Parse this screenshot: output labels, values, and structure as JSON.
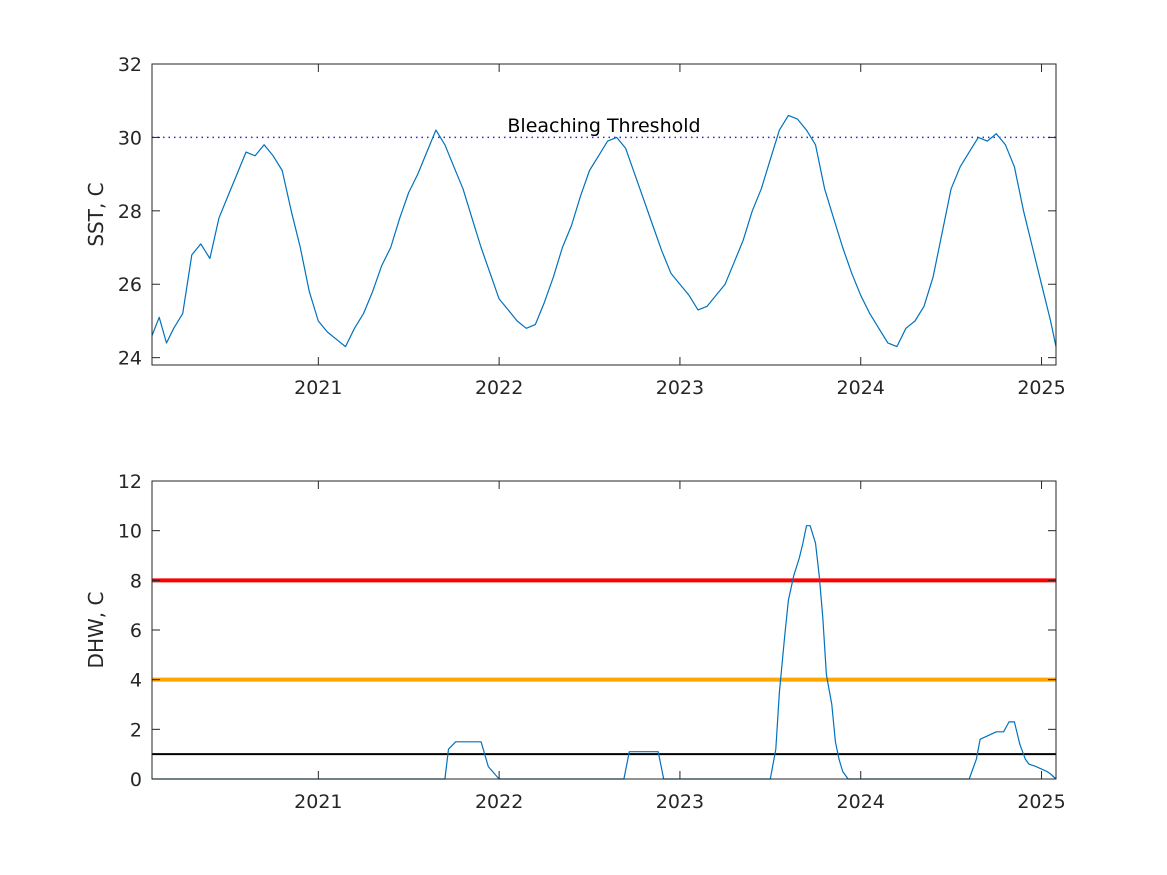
{
  "chart_data": [
    {
      "type": "line",
      "ylabel": "SST, C",
      "xlim": [
        2020.08,
        2025.08
      ],
      "ylim": [
        23.8,
        32
      ],
      "x_ticks": [
        2021,
        2022,
        2023,
        2024,
        2025
      ],
      "y_ticks": [
        24,
        26,
        28,
        30,
        32
      ],
      "annotation": "Bleaching Threshold",
      "threshold": 30,
      "colors": {
        "series": "#0072bd",
        "threshold": "#2b2bd4"
      },
      "series": [
        {
          "x": [
            2020.08,
            2020.12,
            2020.16,
            2020.2,
            2020.25,
            2020.3,
            2020.35,
            2020.4,
            2020.45,
            2020.5,
            2020.55,
            2020.6,
            2020.65,
            2020.7,
            2020.75,
            2020.8,
            2020.85,
            2020.9,
            2020.95,
            2021.0,
            2021.05,
            2021.1,
            2021.15,
            2021.2,
            2021.25,
            2021.3,
            2021.35,
            2021.4,
            2021.45,
            2021.5,
            2021.55,
            2021.6,
            2021.65,
            2021.7,
            2021.75,
            2021.8,
            2021.85,
            2021.9,
            2021.95,
            2022.0,
            2022.05,
            2022.1,
            2022.15,
            2022.2,
            2022.25,
            2022.3,
            2022.35,
            2022.4,
            2022.45,
            2022.5,
            2022.55,
            2022.6,
            2022.65,
            2022.7,
            2022.75,
            2022.8,
            2022.85,
            2022.9,
            2022.95,
            2023.0,
            2023.05,
            2023.1,
            2023.15,
            2023.2,
            2023.25,
            2023.3,
            2023.35,
            2023.4,
            2023.45,
            2023.5,
            2023.55,
            2023.6,
            2023.65,
            2023.7,
            2023.75,
            2023.8,
            2023.85,
            2023.9,
            2023.95,
            2024.0,
            2024.05,
            2024.1,
            2024.15,
            2024.2,
            2024.25,
            2024.3,
            2024.35,
            2024.4,
            2024.45,
            2024.5,
            2024.55,
            2024.6,
            2024.65,
            2024.7,
            2024.75,
            2024.8,
            2024.85,
            2024.9,
            2024.95,
            2025.0,
            2025.05,
            2025.08
          ],
          "y": [
            24.6,
            25.1,
            24.4,
            24.8,
            25.2,
            26.8,
            27.1,
            26.7,
            27.8,
            28.4,
            29.0,
            29.6,
            29.5,
            29.8,
            29.5,
            29.1,
            28.0,
            27.0,
            25.8,
            25.0,
            24.7,
            24.5,
            24.3,
            24.8,
            25.2,
            25.8,
            26.5,
            27.0,
            27.8,
            28.5,
            29.0,
            29.6,
            30.2,
            29.8,
            29.2,
            28.6,
            27.8,
            27.0,
            26.3,
            25.6,
            25.3,
            25.0,
            24.8,
            24.9,
            25.5,
            26.2,
            27.0,
            27.6,
            28.4,
            29.1,
            29.5,
            29.9,
            30.0,
            29.7,
            29.0,
            28.3,
            27.6,
            26.9,
            26.3,
            26.0,
            25.7,
            25.3,
            25.4,
            25.7,
            26.0,
            26.6,
            27.2,
            28.0,
            28.6,
            29.4,
            30.2,
            30.6,
            30.5,
            30.2,
            29.8,
            28.6,
            27.8,
            27.0,
            26.3,
            25.7,
            25.2,
            24.8,
            24.4,
            24.3,
            24.8,
            25.0,
            25.4,
            26.2,
            27.4,
            28.6,
            29.2,
            29.6,
            30.0,
            29.9,
            30.1,
            29.8,
            29.2,
            28.0,
            27.0,
            26.0,
            25.0,
            24.3
          ]
        }
      ]
    },
    {
      "type": "line",
      "ylabel": "DHW, C",
      "xlim": [
        2020.08,
        2025.08
      ],
      "ylim": [
        0,
        12
      ],
      "x_ticks": [
        2021,
        2022,
        2023,
        2024,
        2025
      ],
      "y_ticks": [
        0,
        2,
        4,
        6,
        8,
        10,
        12
      ],
      "reference_lines": [
        {
          "y": 8,
          "color": "#ff0000"
        },
        {
          "y": 4,
          "color": "#ffa500"
        },
        {
          "y": 1,
          "color": "#000000"
        }
      ],
      "colors": {
        "series": "#0072bd"
      },
      "series": [
        {
          "x": [
            2020.08,
            2021.0,
            2021.5,
            2021.7,
            2021.72,
            2021.76,
            2021.9,
            2021.94,
            2022.0,
            2022.5,
            2022.69,
            2022.72,
            2022.88,
            2022.91,
            2023.0,
            2023.5,
            2023.53,
            2023.55,
            2023.58,
            2023.6,
            2023.63,
            2023.66,
            2023.68,
            2023.7,
            2023.72,
            2023.75,
            2023.77,
            2023.79,
            2023.81,
            2023.84,
            2023.86,
            2023.88,
            2023.9,
            2023.93,
            2023.95,
            2024.0,
            2024.5,
            2024.6,
            2024.64,
            2024.66,
            2024.72,
            2024.75,
            2024.79,
            2024.82,
            2024.85,
            2024.88,
            2024.91,
            2024.93,
            2024.97,
            2025.0,
            2025.03,
            2025.05,
            2025.08
          ],
          "y": [
            0,
            0,
            0,
            0,
            1.2,
            1.5,
            1.5,
            0.5,
            0,
            0,
            0,
            1.1,
            1.1,
            0,
            0,
            0,
            1.2,
            3.5,
            5.8,
            7.2,
            8.2,
            8.9,
            9.5,
            10.2,
            10.2,
            9.5,
            8.2,
            6.5,
            4.2,
            3.0,
            1.5,
            0.8,
            0.3,
            0,
            0,
            0,
            0,
            0,
            0.8,
            1.6,
            1.8,
            1.9,
            1.9,
            2.3,
            2.3,
            1.4,
            0.8,
            0.6,
            0.5,
            0.4,
            0.3,
            0.2,
            0
          ]
        }
      ]
    }
  ]
}
